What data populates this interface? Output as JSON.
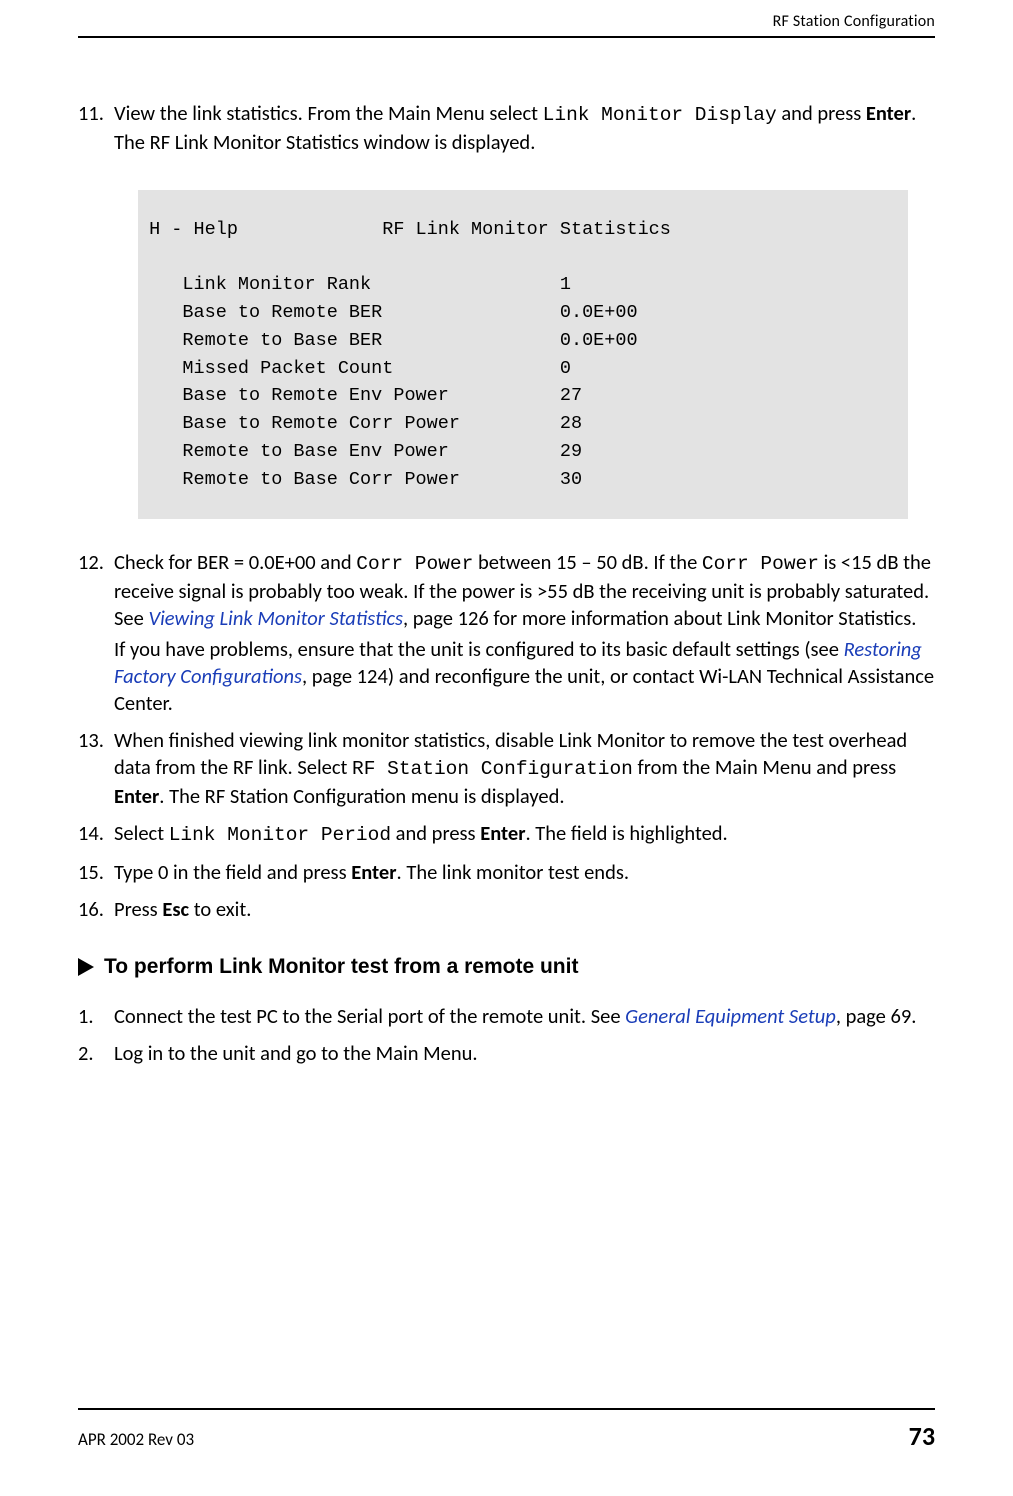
{
  "header": {
    "running_head": "RF Station Configuration"
  },
  "steps_a": [
    {
      "num": "11.",
      "parts": [
        {
          "t": "View the link statistics. From the Main Menu select "
        },
        {
          "t": "Link Monitor Display",
          "cls": "mono"
        },
        {
          "t": " and press "
        },
        {
          "t": "Enter",
          "cls": "bold"
        },
        {
          "t": ". The RF Link Monitor Statistics window is displayed."
        }
      ]
    }
  ],
  "terminal": {
    "help_left": " H - Help",
    "title": "RF Link Monitor Statistics",
    "rows": [
      {
        "label": "Link Monitor Rank",
        "value": "1"
      },
      {
        "label": "Base to Remote BER",
        "value": "0.0E+00"
      },
      {
        "label": "Remote to Base BER",
        "value": "0.0E+00"
      },
      {
        "label": "Missed Packet Count",
        "value": "0"
      },
      {
        "label": "Base to Remote Env Power",
        "value": "27"
      },
      {
        "label": "Base to Remote Corr Power",
        "value": "28"
      },
      {
        "label": "Remote to Base Env Power",
        "value": "29"
      },
      {
        "label": "Remote to Base Corr Power",
        "value": "30"
      }
    ]
  },
  "steps_b": [
    {
      "num": "12.",
      "paragraphs": [
        [
          {
            "t": "Check for BER = 0.0E+00 and "
          },
          {
            "t": "Corr Power",
            "cls": "mono"
          },
          {
            "t": " between 15 – 50 dB. If the "
          },
          {
            "t": "Corr Power",
            "cls": "mono"
          },
          {
            "t": " is <15 dB the receive signal is probably too weak. If the power is >55 dB the receiving unit is probably saturated. See "
          },
          {
            "t": "Viewing Link Monitor Statistics",
            "cls": "link"
          },
          {
            "t": ", page 126 for more information about Link Monitor Statistics."
          }
        ],
        [
          {
            "t": "If you have problems, ensure that the unit is configured to its basic default settings (see "
          },
          {
            "t": "Restoring Factory Configurations",
            "cls": "link"
          },
          {
            "t": ", page 124) and reconfigure the unit, or contact Wi-LAN Technical Assistance Center."
          }
        ]
      ]
    },
    {
      "num": "13.",
      "paragraphs": [
        [
          {
            "t": "When finished viewing link monitor statistics, disable Link Monitor to remove the test overhead data from the RF link. Select "
          },
          {
            "t": "RF Station Configuration",
            "cls": "mono"
          },
          {
            "t": " from the Main Menu and press "
          },
          {
            "t": "Enter",
            "cls": "bold"
          },
          {
            "t": ". The RF Station Configuration menu is displayed."
          }
        ]
      ]
    },
    {
      "num": "14.",
      "paragraphs": [
        [
          {
            "t": "Select "
          },
          {
            "t": "Link Monitor Period",
            "cls": "mono"
          },
          {
            "t": " and press "
          },
          {
            "t": "Enter",
            "cls": "bold"
          },
          {
            "t": ". The field is highlighted."
          }
        ]
      ]
    },
    {
      "num": "15.",
      "paragraphs": [
        [
          {
            "t": "Type 0 in the field and press "
          },
          {
            "t": "Enter",
            "cls": "bold"
          },
          {
            "t": ". The link monitor test ends."
          }
        ]
      ]
    },
    {
      "num": "16.",
      "paragraphs": [
        [
          {
            "t": "Press "
          },
          {
            "t": "Esc",
            "cls": "bold"
          },
          {
            "t": " to exit."
          }
        ]
      ]
    }
  ],
  "procedure": {
    "title": "To perform Link Monitor test from a remote unit"
  },
  "steps_c": [
    {
      "num": "1.",
      "paragraphs": [
        [
          {
            "t": "Connect the test PC to the Serial port of the remote unit. See "
          },
          {
            "t": "General Equipment Setup",
            "cls": "link"
          },
          {
            "t": ", page 69."
          }
        ]
      ]
    },
    {
      "num": "2.",
      "paragraphs": [
        [
          {
            "t": "Log in to the unit and go to the Main Menu."
          }
        ]
      ]
    }
  ],
  "footer": {
    "left": "APR 2002 Rev 03",
    "page": "73"
  },
  "style": {
    "link_color": "#1a3db8",
    "terminal_bg": "#e3e3e3",
    "label_col_width": 34,
    "indent": "    "
  }
}
